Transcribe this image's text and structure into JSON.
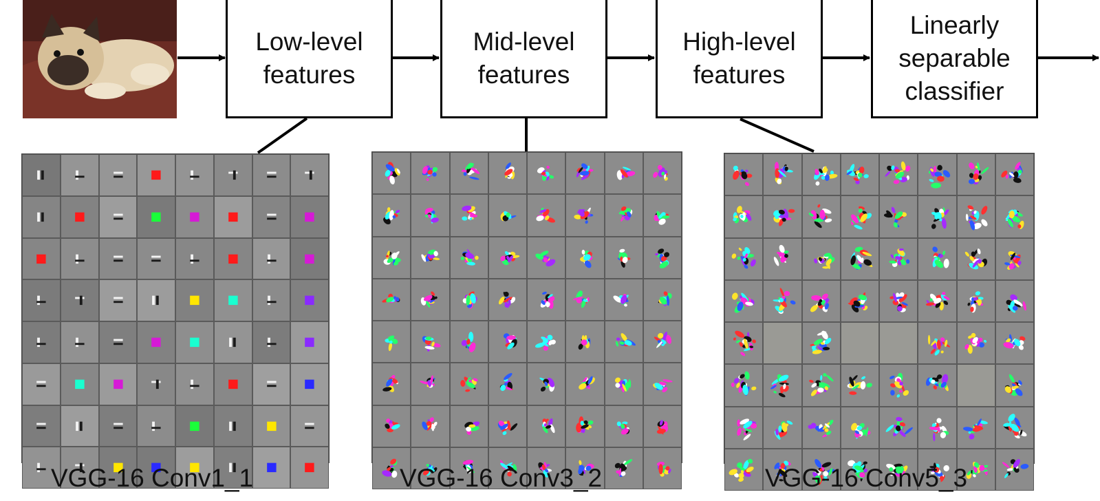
{
  "pipeline": {
    "stages": [
      "Low-level\nfeatures",
      "Mid-level\nfeatures",
      "High-level\nfeatures",
      "Linearly\nseparable\nclassifier"
    ]
  },
  "input_image": {
    "subject": "dog-photo"
  },
  "panels": [
    {
      "caption": "VGG-16 Conv1_1",
      "style": "conv1"
    },
    {
      "caption": "VGG-16 Conv3_2",
      "style": "conv3"
    },
    {
      "caption": "VGG-16 Conv5_3",
      "style": "conv5"
    }
  ],
  "colors": {
    "border": "#000000",
    "grid_bg": "#555555",
    "cell_bg": "#8a8a8a"
  }
}
